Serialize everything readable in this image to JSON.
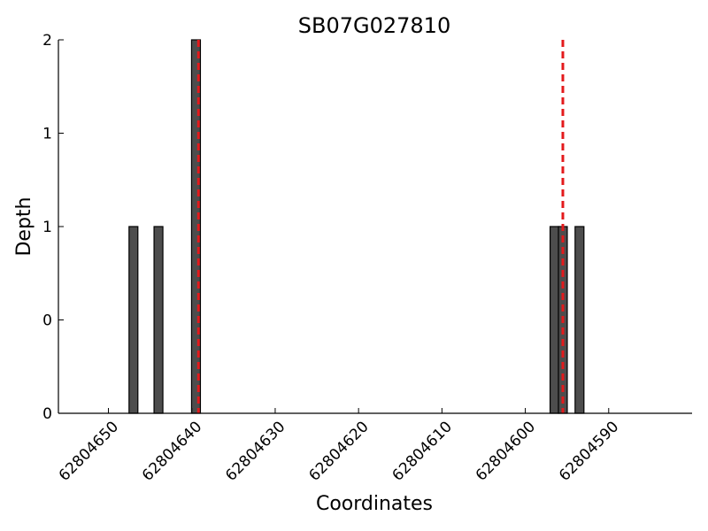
{
  "chart_data": {
    "type": "bar",
    "title": "SB07G027810",
    "xlabel": "Coordinates",
    "ylabel": "Depth",
    "x_axis_reversed": true,
    "xlim": [
      62804656,
      62804580
    ],
    "ylim": [
      0,
      2
    ],
    "x_ticks": [
      62804650,
      62804640,
      62804630,
      62804620,
      62804610,
      62804600,
      62804590
    ],
    "x_tick_labels": [
      "62804650",
      "62804640",
      "62804630",
      "62804620",
      "62804610",
      "62804600",
      "62804590"
    ],
    "y_ticks": [
      0,
      0.5,
      1,
      1.5,
      2
    ],
    "y_tick_labels": [
      "0",
      "0",
      "1",
      "1",
      "2"
    ],
    "bar_color": "#4d4d4d",
    "marker_color": "#e31a1c",
    "bars": [
      {
        "x": 62804647,
        "value": 1
      },
      {
        "x": 62804644,
        "value": 1
      },
      {
        "x": 62804639.5,
        "value": 2
      },
      {
        "x": 62804596.5,
        "value": 1
      },
      {
        "x": 62804595.5,
        "value": 1
      },
      {
        "x": 62804593.5,
        "value": 1
      }
    ],
    "markers": [
      {
        "x": 62804639.2
      },
      {
        "x": 62804595.5
      }
    ],
    "grid": false,
    "legend": "none"
  }
}
